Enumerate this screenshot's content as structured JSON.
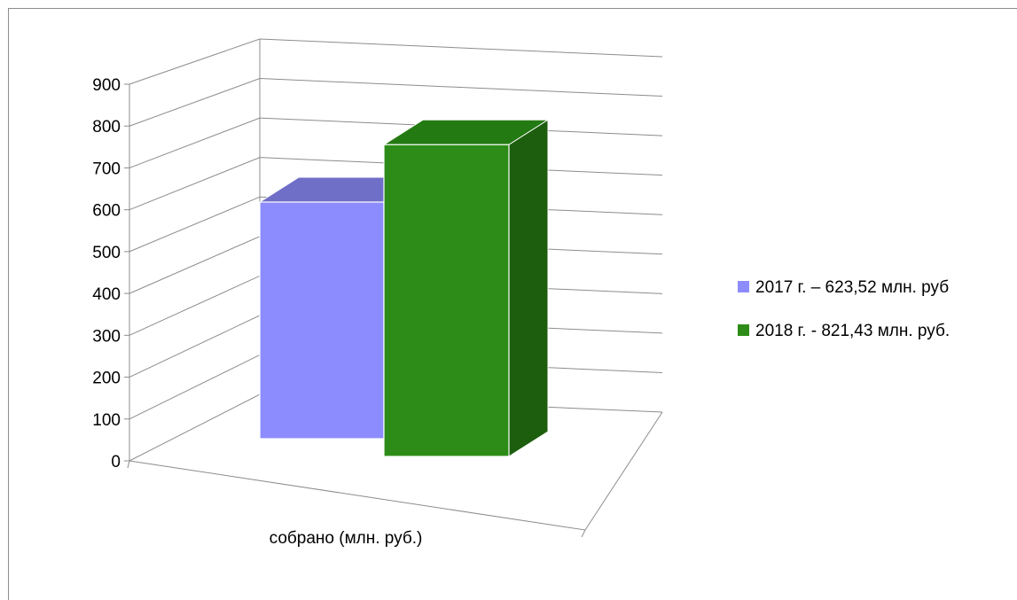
{
  "chart_data": {
    "type": "bar",
    "title": "",
    "xlabel": "",
    "ylabel": "",
    "categories": [
      "собрано (млн. руб.)"
    ],
    "series": [
      {
        "name": "2017 г. – 623,52 млн. руб",
        "values": [
          623.52
        ],
        "color": "#8c8cff",
        "top_color": "#6f6fc8",
        "side_color": "#5a5ab0"
      },
      {
        "name": "2018 г. - 821,43 млн. руб.",
        "values": [
          821.43
        ],
        "color": "#2c8c17",
        "top_color": "#247a12",
        "side_color": "#1c5e0d"
      }
    ],
    "ylim": [
      0,
      900
    ],
    "yticks": [
      "0",
      "100",
      "200",
      "300",
      "400",
      "500",
      "600",
      "700",
      "800",
      "900"
    ],
    "grid": true,
    "legend": "right",
    "style": "3d-column"
  }
}
